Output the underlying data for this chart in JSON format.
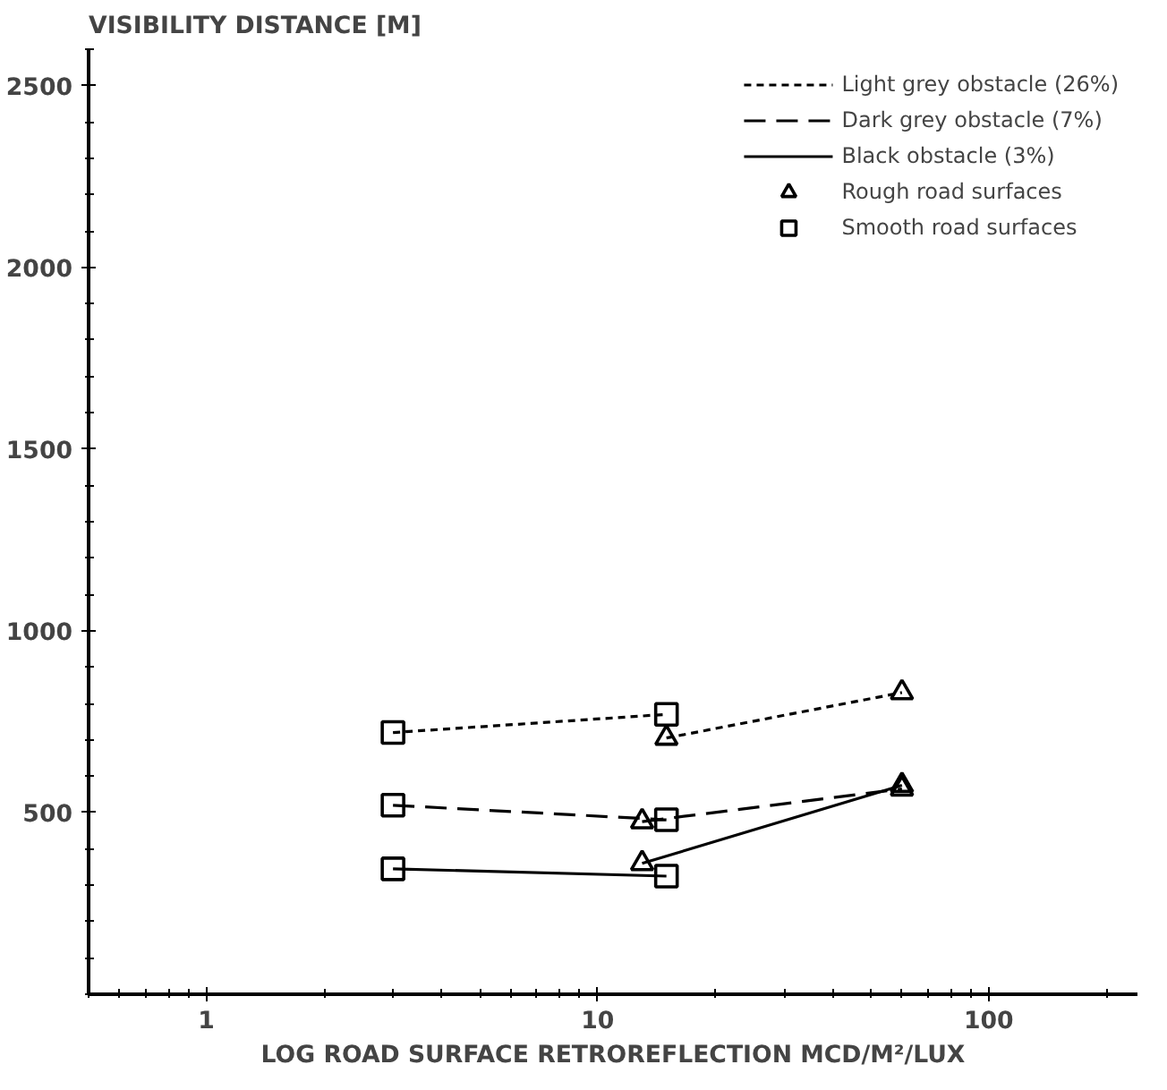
{
  "chart_data": {
    "type": "line",
    "xlabel": "LOG ROAD SURFACE RETROREFLECTION MCD/M²/LUX",
    "ylabel": "VISIBILITY DISTANCE [M]",
    "log": "x",
    "xlim": [
      0.5,
      240
    ],
    "ylim": [
      0,
      2600
    ],
    "xticks": [
      1,
      10,
      100
    ],
    "yticks": [
      500,
      1000,
      1500,
      2000,
      2500
    ],
    "grid": false,
    "legend": "top right",
    "series": [
      {
        "name": "Light grey obstacle (26%)",
        "color": "#000000",
        "x": [
          3,
          15,
          null,
          15,
          60
        ],
        "values": [
          720,
          770,
          null,
          705,
          830
        ],
        "line_style": "dotted",
        "marker": "none"
      },
      {
        "name": "Dark grey obstacle (7%)",
        "color": "#000000",
        "x": [
          3,
          15,
          null,
          13,
          60
        ],
        "values": [
          520,
          480,
          null,
          475,
          565
        ],
        "line_style": "dashed",
        "marker": "none"
      },
      {
        "name": "Black obstacle (3%)",
        "color": "#000000",
        "x": [
          3,
          15,
          null,
          13,
          60
        ],
        "values": [
          345,
          325,
          null,
          360,
          575
        ],
        "line_style": "solid",
        "marker": "none"
      },
      {
        "name": "Rough road surfaces",
        "type": "scatter",
        "color": "#000000",
        "x": [
          15,
          60,
          13,
          60,
          13,
          60
        ],
        "values": [
          705,
          830,
          475,
          565,
          360,
          575
        ],
        "marker": "triangle"
      },
      {
        "name": "Smooth road surfaces",
        "type": "scatter",
        "color": "#000000",
        "x": [
          3,
          15,
          3,
          15,
          3,
          15
        ],
        "values": [
          720,
          770,
          520,
          480,
          345,
          325
        ],
        "marker": "square"
      }
    ]
  }
}
